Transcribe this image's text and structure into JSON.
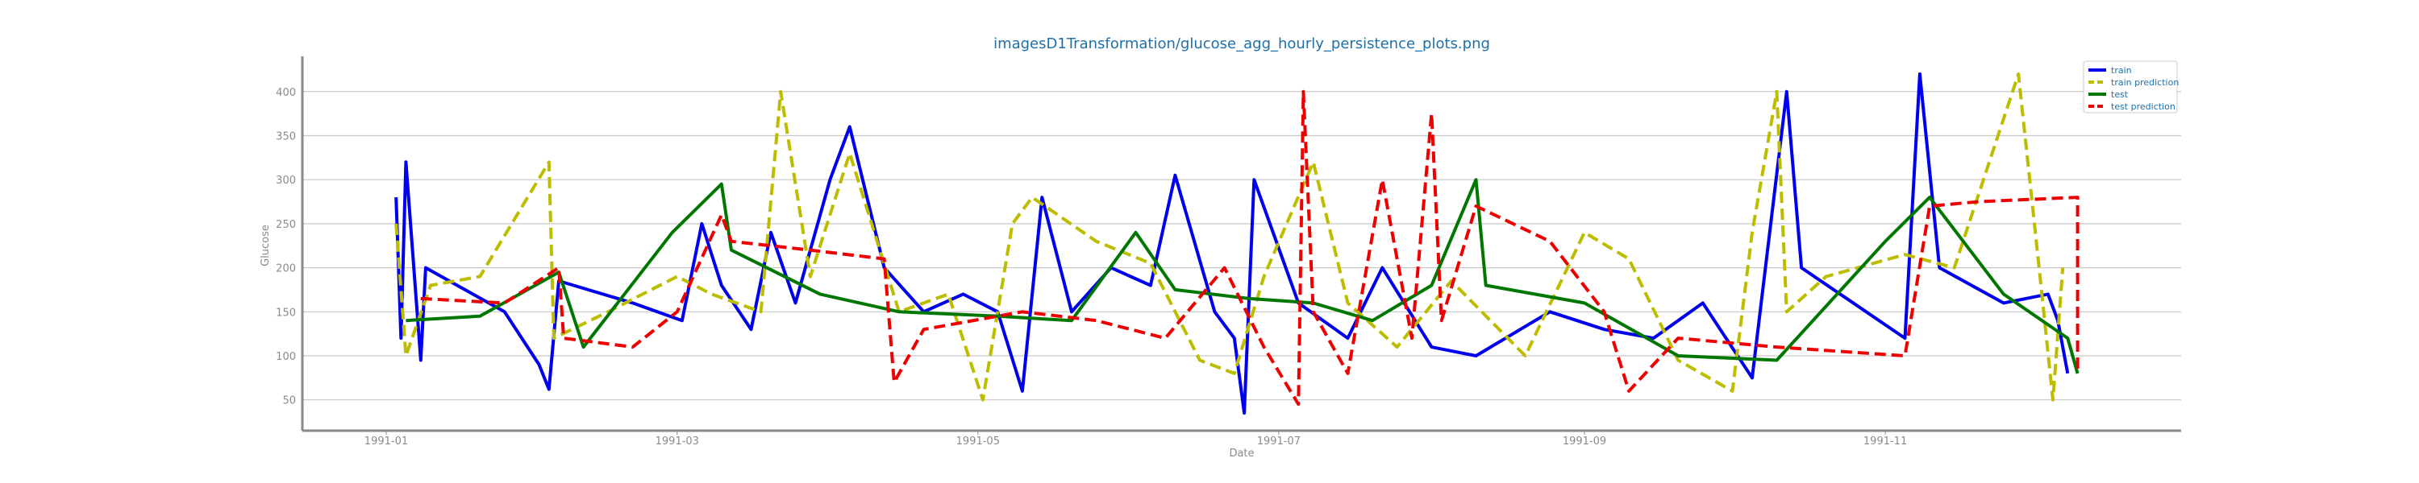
{
  "chart_data": {
    "type": "line",
    "title": "imagesD1Transformation/glucose_agg_hourly_persistence_plots.png",
    "xlabel": "Date",
    "ylabel": "Glucose",
    "x_ticks": [
      "1991-01",
      "1991-03",
      "1991-05",
      "1991-07",
      "1991-09",
      "1991-11"
    ],
    "y_ticks": [
      50,
      100,
      150,
      200,
      250,
      300,
      350,
      400
    ],
    "xlim": [
      "1990-12-15",
      "1991-12-31"
    ],
    "ylim": [
      15,
      440
    ],
    "grid": "horizontal",
    "legend_position": "top-right",
    "series": [
      {
        "name": "train",
        "color": "#0000ee",
        "style": "solid",
        "points": [
          [
            "1991-01-03",
            280
          ],
          [
            "1991-01-04",
            120
          ],
          [
            "1991-01-05",
            320
          ],
          [
            "1991-01-08",
            95
          ],
          [
            "1991-01-09",
            200
          ],
          [
            "1991-01-25",
            150
          ],
          [
            "1991-02-01",
            90
          ],
          [
            "1991-02-03",
            62
          ],
          [
            "1991-02-05",
            185
          ],
          [
            "1991-02-20",
            160
          ],
          [
            "1991-03-02",
            140
          ],
          [
            "1991-03-06",
            250
          ],
          [
            "1991-03-10",
            180
          ],
          [
            "1991-03-16",
            130
          ],
          [
            "1991-03-20",
            240
          ],
          [
            "1991-03-25",
            160
          ],
          [
            "1991-04-01",
            300
          ],
          [
            "1991-04-05",
            360
          ],
          [
            "1991-04-12",
            200
          ],
          [
            "1991-04-20",
            150
          ],
          [
            "1991-04-28",
            170
          ],
          [
            "1991-05-05",
            150
          ],
          [
            "1991-05-10",
            60
          ],
          [
            "1991-05-14",
            280
          ],
          [
            "1991-05-20",
            150
          ],
          [
            "1991-05-28",
            200
          ],
          [
            "1991-06-05",
            180
          ],
          [
            "1991-06-10",
            305
          ],
          [
            "1991-06-18",
            150
          ],
          [
            "1991-06-22",
            120
          ],
          [
            "1991-06-24",
            35
          ],
          [
            "1991-06-26",
            300
          ],
          [
            "1991-07-05",
            160
          ],
          [
            "1991-07-15",
            120
          ],
          [
            "1991-07-22",
            200
          ],
          [
            "1991-08-01",
            110
          ],
          [
            "1991-08-10",
            100
          ],
          [
            "1991-08-25",
            150
          ],
          [
            "1991-09-05",
            130
          ],
          [
            "1991-09-15",
            120
          ],
          [
            "1991-09-25",
            160
          ],
          [
            "1991-10-05",
            75
          ],
          [
            "1991-10-12",
            400
          ],
          [
            "1991-10-15",
            200
          ],
          [
            "1991-11-05",
            120
          ],
          [
            "1991-11-08",
            420
          ],
          [
            "1991-11-12",
            200
          ],
          [
            "1991-11-25",
            160
          ],
          [
            "1991-12-04",
            170
          ],
          [
            "1991-12-06",
            140
          ],
          [
            "1991-12-08",
            80
          ]
        ]
      },
      {
        "name": "train prediction",
        "color": "#bdbd00",
        "style": "dashed",
        "points": [
          [
            "1991-01-03",
            250
          ],
          [
            "1991-01-05",
            100
          ],
          [
            "1991-01-10",
            180
          ],
          [
            "1991-01-20",
            190
          ],
          [
            "1991-02-03",
            320
          ],
          [
            "1991-02-04",
            120
          ],
          [
            "1991-02-15",
            150
          ],
          [
            "1991-03-01",
            190
          ],
          [
            "1991-03-08",
            170
          ],
          [
            "1991-03-18",
            150
          ],
          [
            "1991-03-22",
            400
          ],
          [
            "1991-03-28",
            190
          ],
          [
            "1991-04-05",
            330
          ],
          [
            "1991-04-15",
            150
          ],
          [
            "1991-04-25",
            170
          ],
          [
            "1991-05-02",
            50
          ],
          [
            "1991-05-08",
            250
          ],
          [
            "1991-05-12",
            280
          ],
          [
            "1991-05-25",
            230
          ],
          [
            "1991-06-05",
            205
          ],
          [
            "1991-06-15",
            95
          ],
          [
            "1991-06-22",
            80
          ],
          [
            "1991-06-28",
            190
          ],
          [
            "1991-07-08",
            320
          ],
          [
            "1991-07-15",
            160
          ],
          [
            "1991-07-25",
            110
          ],
          [
            "1991-08-05",
            185
          ],
          [
            "1991-08-20",
            100
          ],
          [
            "1991-09-01",
            240
          ],
          [
            "1991-09-10",
            210
          ],
          [
            "1991-09-20",
            95
          ],
          [
            "1991-10-01",
            60
          ],
          [
            "1991-10-05",
            240
          ],
          [
            "1991-10-10",
            400
          ],
          [
            "1991-10-12",
            150
          ],
          [
            "1991-10-20",
            190
          ],
          [
            "1991-11-05",
            215
          ],
          [
            "1991-11-15",
            200
          ],
          [
            "1991-11-28",
            420
          ],
          [
            "1991-12-02",
            210
          ],
          [
            "1991-12-05",
            50
          ],
          [
            "1991-12-07",
            200
          ]
        ]
      },
      {
        "name": "test",
        "color": "#007700",
        "style": "solid",
        "points": [
          [
            "1991-01-05",
            140
          ],
          [
            "1991-01-20",
            145
          ],
          [
            "1991-02-05",
            195
          ],
          [
            "1991-02-10",
            110
          ],
          [
            "1991-02-28",
            240
          ],
          [
            "1991-03-10",
            295
          ],
          [
            "1991-03-12",
            220
          ],
          [
            "1991-03-30",
            170
          ],
          [
            "1991-04-15",
            150
          ],
          [
            "1991-05-05",
            145
          ],
          [
            "1991-05-20",
            140
          ],
          [
            "1991-06-02",
            240
          ],
          [
            "1991-06-10",
            175
          ],
          [
            "1991-06-25",
            165
          ],
          [
            "1991-07-08",
            160
          ],
          [
            "1991-07-20",
            140
          ],
          [
            "1991-08-01",
            180
          ],
          [
            "1991-08-10",
            300
          ],
          [
            "1991-08-12",
            180
          ],
          [
            "1991-09-01",
            160
          ],
          [
            "1991-09-20",
            100
          ],
          [
            "1991-10-10",
            95
          ],
          [
            "1991-11-01",
            230
          ],
          [
            "1991-11-10",
            280
          ],
          [
            "1991-11-25",
            170
          ],
          [
            "1991-12-08",
            120
          ],
          [
            "1991-12-10",
            80
          ]
        ]
      },
      {
        "name": "test prediction",
        "color": "#ee0000",
        "style": "dashed",
        "points": [
          [
            "1991-01-08",
            165
          ],
          [
            "1991-01-25",
            160
          ],
          [
            "1991-02-05",
            200
          ],
          [
            "1991-02-06",
            120
          ],
          [
            "1991-02-20",
            110
          ],
          [
            "1991-03-01",
            150
          ],
          [
            "1991-03-10",
            260
          ],
          [
            "1991-03-12",
            230
          ],
          [
            "1991-03-28",
            220
          ],
          [
            "1991-04-12",
            210
          ],
          [
            "1991-04-14",
            70
          ],
          [
            "1991-04-20",
            130
          ],
          [
            "1991-05-10",
            150
          ],
          [
            "1991-05-25",
            140
          ],
          [
            "1991-06-08",
            120
          ],
          [
            "1991-06-20",
            200
          ],
          [
            "1991-06-28",
            110
          ],
          [
            "1991-07-05",
            45
          ],
          [
            "1991-07-06",
            400
          ],
          [
            "1991-07-08",
            150
          ],
          [
            "1991-07-15",
            80
          ],
          [
            "1991-07-22",
            300
          ],
          [
            "1991-07-28",
            120
          ],
          [
            "1991-08-01",
            375
          ],
          [
            "1991-08-03",
            140
          ],
          [
            "1991-08-10",
            270
          ],
          [
            "1991-08-25",
            230
          ],
          [
            "1991-09-05",
            150
          ],
          [
            "1991-09-10",
            60
          ],
          [
            "1991-09-20",
            120
          ],
          [
            "1991-10-10",
            110
          ],
          [
            "1991-11-05",
            100
          ],
          [
            "1991-11-10",
            270
          ],
          [
            "1991-11-20",
            275
          ],
          [
            "1991-12-10",
            280
          ],
          [
            "1991-12-10",
            80
          ]
        ]
      }
    ]
  }
}
